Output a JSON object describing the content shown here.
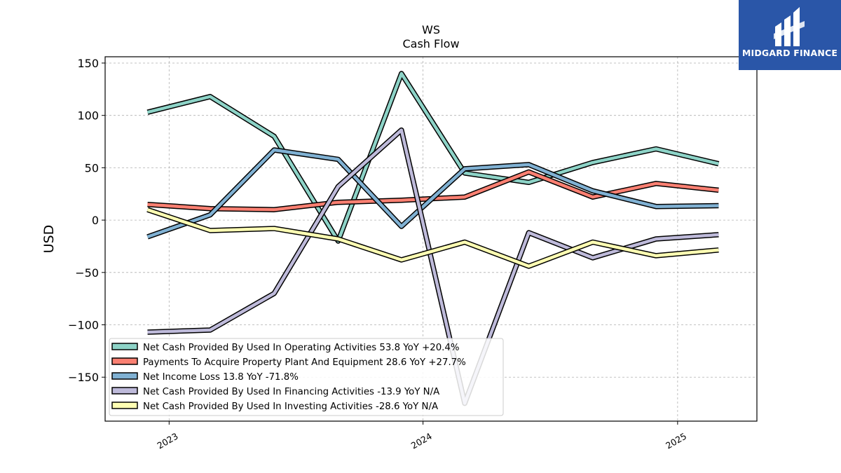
{
  "chart_data": {
    "type": "line",
    "title": "WS",
    "subtitle": "Cash Flow",
    "xlabel": "",
    "ylabel": "USD",
    "x_ticks": [
      "2023",
      "2024",
      "2025"
    ],
    "y_ticks": [
      "150",
      "100",
      "50",
      "0",
      "−50",
      "−100",
      "−150"
    ],
    "ylim": [
      -192,
      156
    ],
    "grid": true,
    "legend_position": "lower-left",
    "x": [
      "2022-12-01",
      "2023-03-01",
      "2023-06-01",
      "2023-09-01",
      "2023-12-01",
      "2024-03-01",
      "2024-06-01",
      "2024-09-01",
      "2024-12-01",
      "2025-03-01"
    ],
    "series": [
      {
        "name": "Net Cash Provided By Used In Operating Activities",
        "legend": "Net Cash Provided By Used In Operating Activities  53.8 YoY +20.4%",
        "color": "#8dd3c7",
        "values": [
          103,
          118,
          80,
          -20,
          140,
          45,
          36,
          55,
          68,
          53.8
        ]
      },
      {
        "name": "Payments To Acquire Property Plant And Equipment",
        "legend": "Payments To Acquire Property Plant And Equipment  28.6 YoY +27.7%",
        "color": "#fb8072",
        "values": [
          15,
          11,
          10,
          17,
          19,
          22,
          46,
          22,
          35,
          28.6
        ]
      },
      {
        "name": "Net Income Loss",
        "legend": "Net Income Loss  13.8 YoY -71.8%",
        "color": "#80b1d3",
        "values": [
          -16,
          5,
          67,
          58,
          -6,
          49,
          53,
          28,
          13,
          13.8
        ]
      },
      {
        "name": "Net Cash Provided By Used In Financing Activities",
        "legend": "Net Cash Provided By Used In Financing Activities  -13.9 YoY N/A",
        "color": "#bebada",
        "values": [
          -107,
          -105,
          -70,
          32,
          86,
          -175,
          -12,
          -36,
          -18,
          -13.9
        ]
      },
      {
        "name": "Net Cash Provided By Used In Investing Activities",
        "legend": "Net Cash Provided By Used In Investing Activities  -28.6 YoY N/A",
        "color": "#ffffb3",
        "values": [
          10,
          -10,
          -8,
          -18,
          -38,
          -21,
          -44,
          -21,
          -34,
          -28.6
        ]
      }
    ]
  },
  "logo": {
    "text": "MIDGARD FINANCE"
  }
}
